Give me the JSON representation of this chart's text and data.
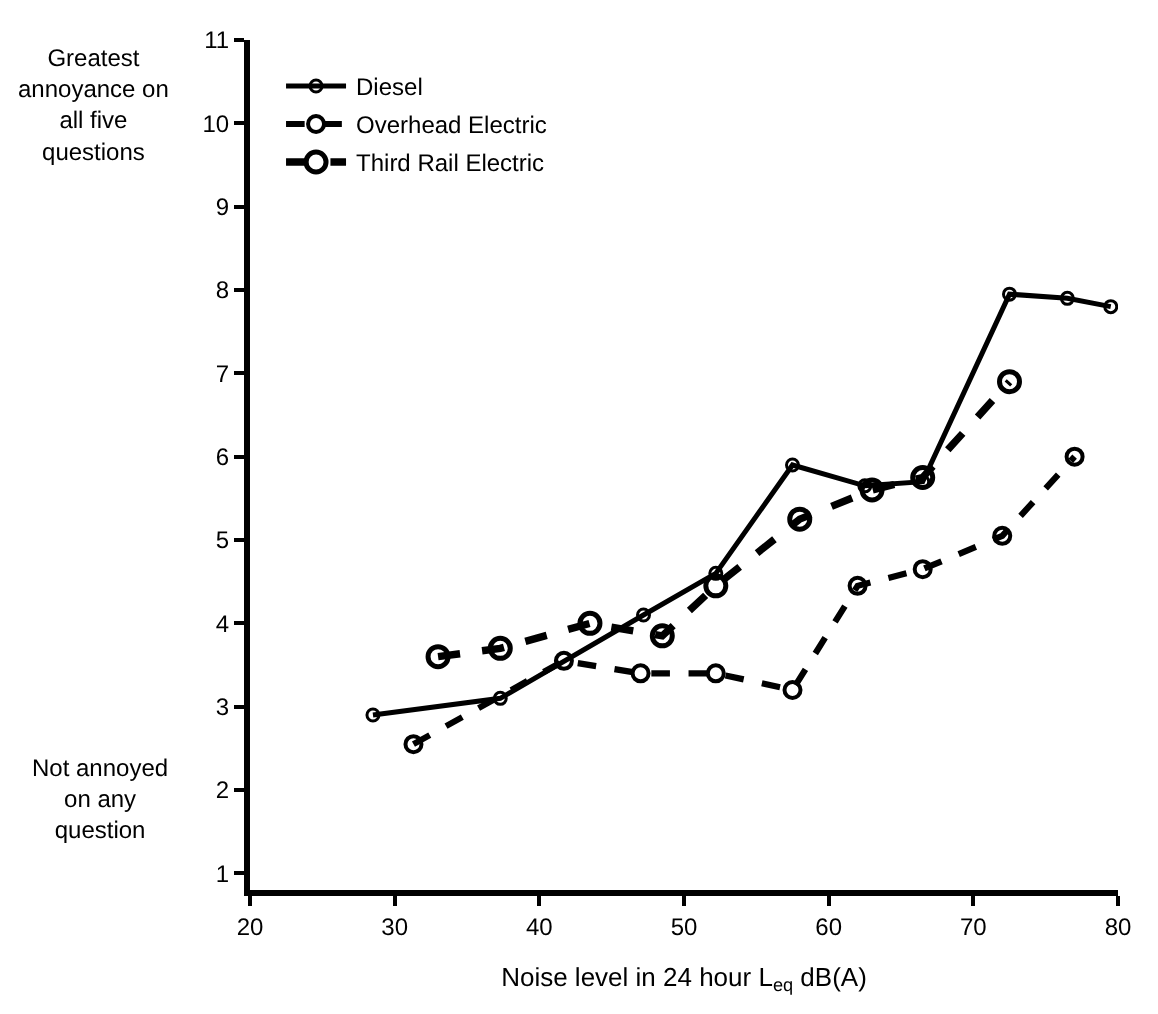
{
  "chart_data": {
    "type": "line",
    "xlabel": "Noise level in 24 hour L$_{eq}$ dB(A)",
    "annotations": [
      "Greatest annoyance on all five questions",
      "Not annoyed on any question"
    ],
    "xlim": [
      20,
      80
    ],
    "xticks": [
      20,
      30,
      40,
      50,
      60,
      70,
      80
    ],
    "ylim": [
      0.8,
      11
    ],
    "yticks": [
      1,
      2,
      3,
      4,
      5,
      6,
      7,
      8,
      9,
      10,
      11
    ],
    "legend": "top left",
    "marker": "circle",
    "series": [
      {
        "name": "Diesel",
        "color": "#000000",
        "line_style": "solid",
        "x": [
          28.5,
          37.3,
          47.2,
          52.2,
          57.5,
          62.5,
          66.5,
          72.5,
          76.5,
          79.5
        ],
        "values": [
          2.9,
          3.1,
          4.1,
          4.6,
          5.9,
          5.65,
          5.7,
          7.95,
          7.9,
          7.8
        ]
      },
      {
        "name": "Overhead Electric",
        "color": "#000000",
        "line_style": "dashed",
        "x": [
          31.3,
          41.7,
          47,
          52.2,
          57.5,
          62,
          66.5,
          72,
          77
        ],
        "values": [
          2.55,
          3.55,
          3.4,
          3.4,
          3.2,
          4.45,
          4.65,
          5.05,
          6.0
        ]
      },
      {
        "name": "Third Rail Electric",
        "color": "#000000",
        "line_style": "dashed",
        "x": [
          33,
          37.3,
          43.5,
          48.5,
          52.2,
          58,
          63,
          66.5,
          72.5
        ],
        "values": [
          3.6,
          3.7,
          4.0,
          3.85,
          4.45,
          5.25,
          5.6,
          5.75,
          6.9
        ]
      }
    ]
  }
}
